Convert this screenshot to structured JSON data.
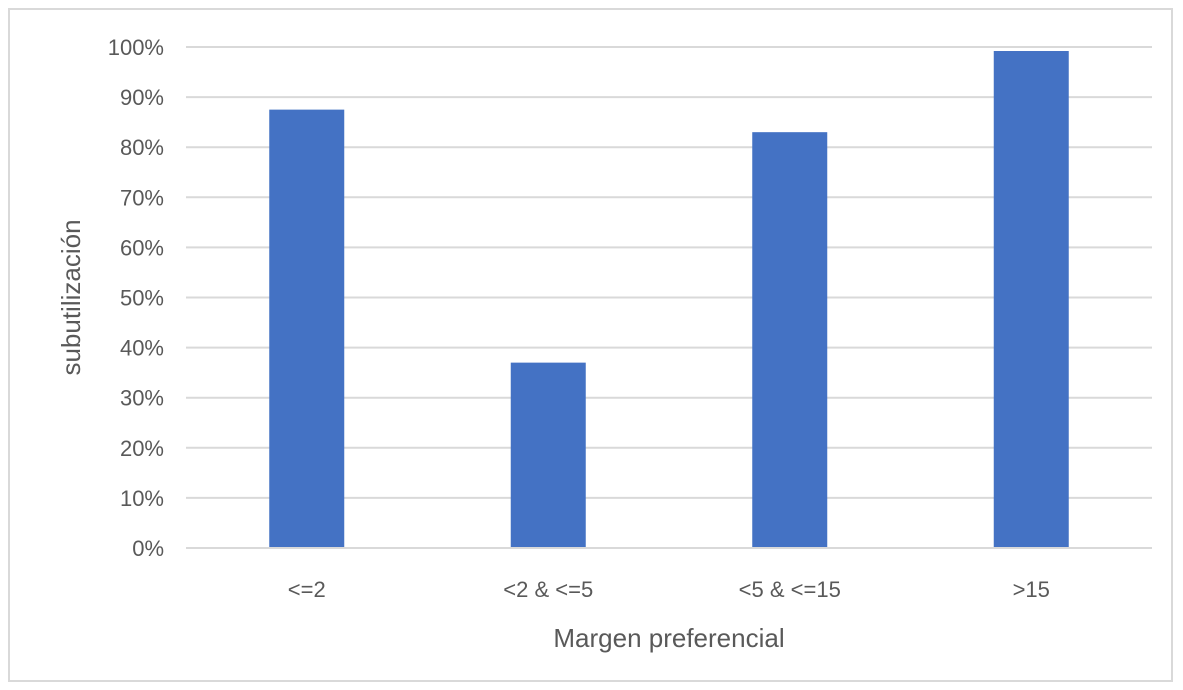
{
  "chart_data": {
    "type": "bar",
    "title": "",
    "xlabel": "Margen preferencial",
    "ylabel": "subutilización",
    "categories": [
      "<=2",
      "<2 & <=5",
      "<5 & <=15",
      ">15"
    ],
    "values": [
      87.5,
      37,
      83,
      99.2
    ],
    "ylim": [
      0,
      100
    ],
    "yticks": [
      0,
      10,
      20,
      30,
      40,
      50,
      60,
      70,
      80,
      90,
      100
    ],
    "ytick_labels": [
      "0%",
      "10%",
      "20%",
      "30%",
      "40%",
      "50%",
      "60%",
      "70%",
      "80%",
      "90%",
      "100%"
    ],
    "grid": true,
    "legend": "none",
    "bar_color": "#4472c4",
    "gridline_color": "#d9d9d9"
  }
}
